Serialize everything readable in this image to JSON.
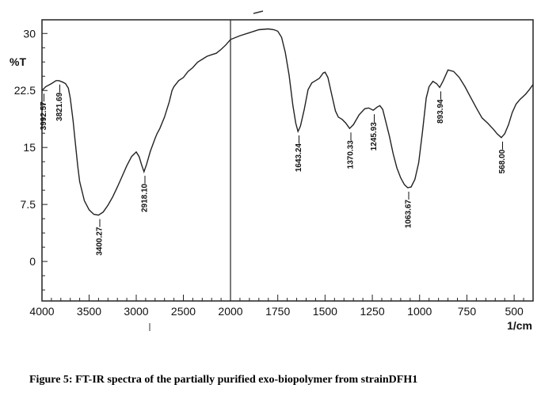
{
  "chart_data": {
    "type": "line",
    "title": "",
    "xlabel": "1/cm",
    "ylabel": "%T",
    "xlim": [
      4000,
      400
    ],
    "x_scale_break": 2000,
    "ylim": [
      -5.2,
      31.8
    ],
    "x_ticks": [
      4000,
      3500,
      3000,
      2500,
      2000,
      1750,
      1500,
      1250,
      1000,
      750,
      500
    ],
    "y_ticks": [
      0,
      7.5,
      15,
      22.5,
      30
    ],
    "y_tick_labels": [
      "0",
      "7.5",
      "15",
      "22.5",
      "30"
    ],
    "grid": false,
    "line_color": "#222222",
    "series": [
      {
        "name": "FT-IR spectrum",
        "x": [
          4000,
          3960,
          3900,
          3850,
          3821,
          3780,
          3750,
          3720,
          3700,
          3670,
          3650,
          3620,
          3600,
          3550,
          3500,
          3450,
          3400,
          3350,
          3300,
          3250,
          3200,
          3150,
          3100,
          3050,
          3000,
          2970,
          2940,
          2918,
          2890,
          2850,
          2800,
          2780,
          2750,
          2700,
          2650,
          2620,
          2600,
          2550,
          2500,
          2450,
          2400,
          2350,
          2300,
          2250,
          2200,
          2150,
          2100,
          2050,
          2000,
          1950,
          1900,
          1850,
          1800,
          1770,
          1750,
          1730,
          1710,
          1690,
          1670,
          1655,
          1643,
          1630,
          1610,
          1590,
          1570,
          1550,
          1530,
          1510,
          1500,
          1485,
          1465,
          1445,
          1430,
          1410,
          1390,
          1370,
          1350,
          1320,
          1290,
          1270,
          1245,
          1225,
          1210,
          1195,
          1180,
          1160,
          1140,
          1120,
          1100,
          1080,
          1063,
          1045,
          1025,
          1005,
          985,
          965,
          950,
          930,
          910,
          894,
          875,
          850,
          820,
          790,
          760,
          730,
          700,
          670,
          640,
          610,
          590,
          568,
          550,
          530,
          510,
          490,
          470,
          440,
          420,
          400
        ],
        "y": [
          22.5,
          23.0,
          23.4,
          23.8,
          23.8,
          23.6,
          23.4,
          22.8,
          21.5,
          18.5,
          16.0,
          12.5,
          10.5,
          8.0,
          6.8,
          6.2,
          6.1,
          6.5,
          7.4,
          8.5,
          9.8,
          11.2,
          12.6,
          13.8,
          14.4,
          13.8,
          12.6,
          11.8,
          12.8,
          14.5,
          16.2,
          16.8,
          17.5,
          19.0,
          21.0,
          22.5,
          23.0,
          23.8,
          24.2,
          25.0,
          25.5,
          26.2,
          26.6,
          27.0,
          27.2,
          27.4,
          27.9,
          28.5,
          29.2,
          29.7,
          30.1,
          30.5,
          30.6,
          30.5,
          30.3,
          29.5,
          27.5,
          24.5,
          20.5,
          18.2,
          17.1,
          17.8,
          20.0,
          22.6,
          23.5,
          23.8,
          24.1,
          24.8,
          24.9,
          24.2,
          22.0,
          19.8,
          19.0,
          18.7,
          18.2,
          17.5,
          18.0,
          19.3,
          20.1,
          20.2,
          19.9,
          20.3,
          20.5,
          20.0,
          18.5,
          16.5,
          14.2,
          12.3,
          11.0,
          10.1,
          9.7,
          9.8,
          10.8,
          13.0,
          17.0,
          21.5,
          23.0,
          23.7,
          23.4,
          22.9,
          23.8,
          25.2,
          25.0,
          24.2,
          23.0,
          21.6,
          20.2,
          18.9,
          18.2,
          17.4,
          16.8,
          16.3,
          16.8,
          18.0,
          19.6,
          20.7,
          21.3,
          22.0,
          22.6,
          23.3
        ]
      }
    ],
    "peak_labels": [
      {
        "text": "3992.57",
        "x": 3992.57,
        "y": 22.6
      },
      {
        "text": "3821.69",
        "x": 3821.69,
        "y": 23.8
      },
      {
        "text": "3400.27",
        "x": 3400.27,
        "y": 6.1
      },
      {
        "text": "2918.10",
        "x": 2918.1,
        "y": 11.8
      },
      {
        "text": "1643.24",
        "x": 1643.24,
        "y": 17.1
      },
      {
        "text": "1370.33",
        "x": 1370.33,
        "y": 17.5
      },
      {
        "text": "1245.93",
        "x": 1245.93,
        "y": 19.9
      },
      {
        "text": "1063.67",
        "x": 1063.67,
        "y": 9.7
      },
      {
        "text": "893.94",
        "x": 893.94,
        "y": 22.9
      },
      {
        "text": "568.00",
        "x": 568.0,
        "y": 16.3
      }
    ],
    "reference_line_x": 2000
  },
  "caption": "Figure 5: FT-IR spectra of the partially purified exo-biopolymer from strainDFH1"
}
